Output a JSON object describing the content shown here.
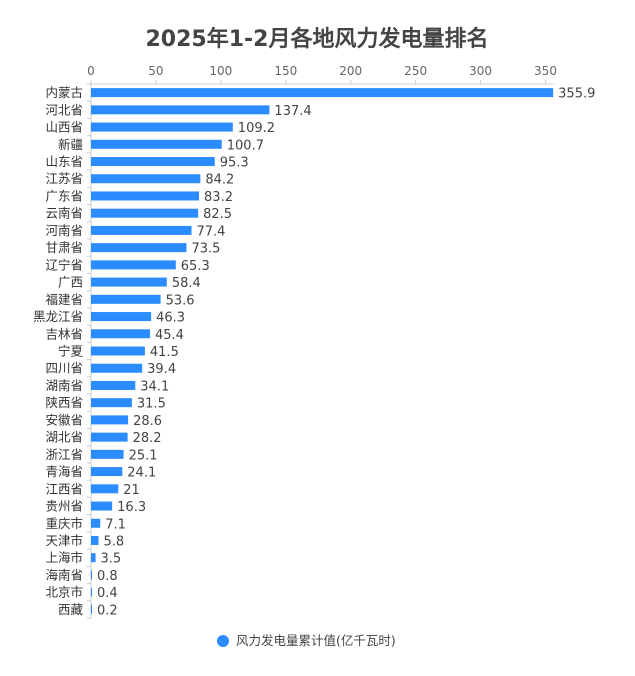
{
  "chart_data": {
    "type": "bar",
    "orientation": "horizontal",
    "title": "2025年1-2月各地风力发电量排名",
    "categories": [
      "内蒙古",
      "河北省",
      "山西省",
      "新疆",
      "山东省",
      "江苏省",
      "广东省",
      "云南省",
      "河南省",
      "甘肃省",
      "辽宁省",
      "广西",
      "福建省",
      "黑龙江省",
      "吉林省",
      "宁夏",
      "四川省",
      "湖南省",
      "陕西省",
      "安徽省",
      "湖北省",
      "浙江省",
      "青海省",
      "江西省",
      "贵州省",
      "重庆市",
      "天津市",
      "上海市",
      "海南省",
      "北京市",
      "西藏"
    ],
    "series": [
      {
        "name": "风力发电量累计值(亿千瓦时)",
        "values": [
          355.9,
          137.4,
          109.2,
          100.7,
          95.3,
          84.2,
          83.2,
          82.5,
          77.4,
          73.5,
          65.3,
          58.4,
          53.6,
          46.3,
          45.4,
          41.5,
          39.4,
          34.1,
          31.5,
          28.6,
          28.2,
          25.1,
          24.1,
          21,
          16.3,
          7.1,
          5.8,
          3.5,
          0.8,
          0.4,
          0.2
        ],
        "color": "#2b8cff"
      }
    ],
    "xlim": [
      0,
      350
    ],
    "xticks": [
      0,
      50,
      100,
      150,
      200,
      250,
      300,
      350
    ],
    "x_axis_position": "top",
    "grid": false,
    "legend_position": "bottom-center"
  }
}
